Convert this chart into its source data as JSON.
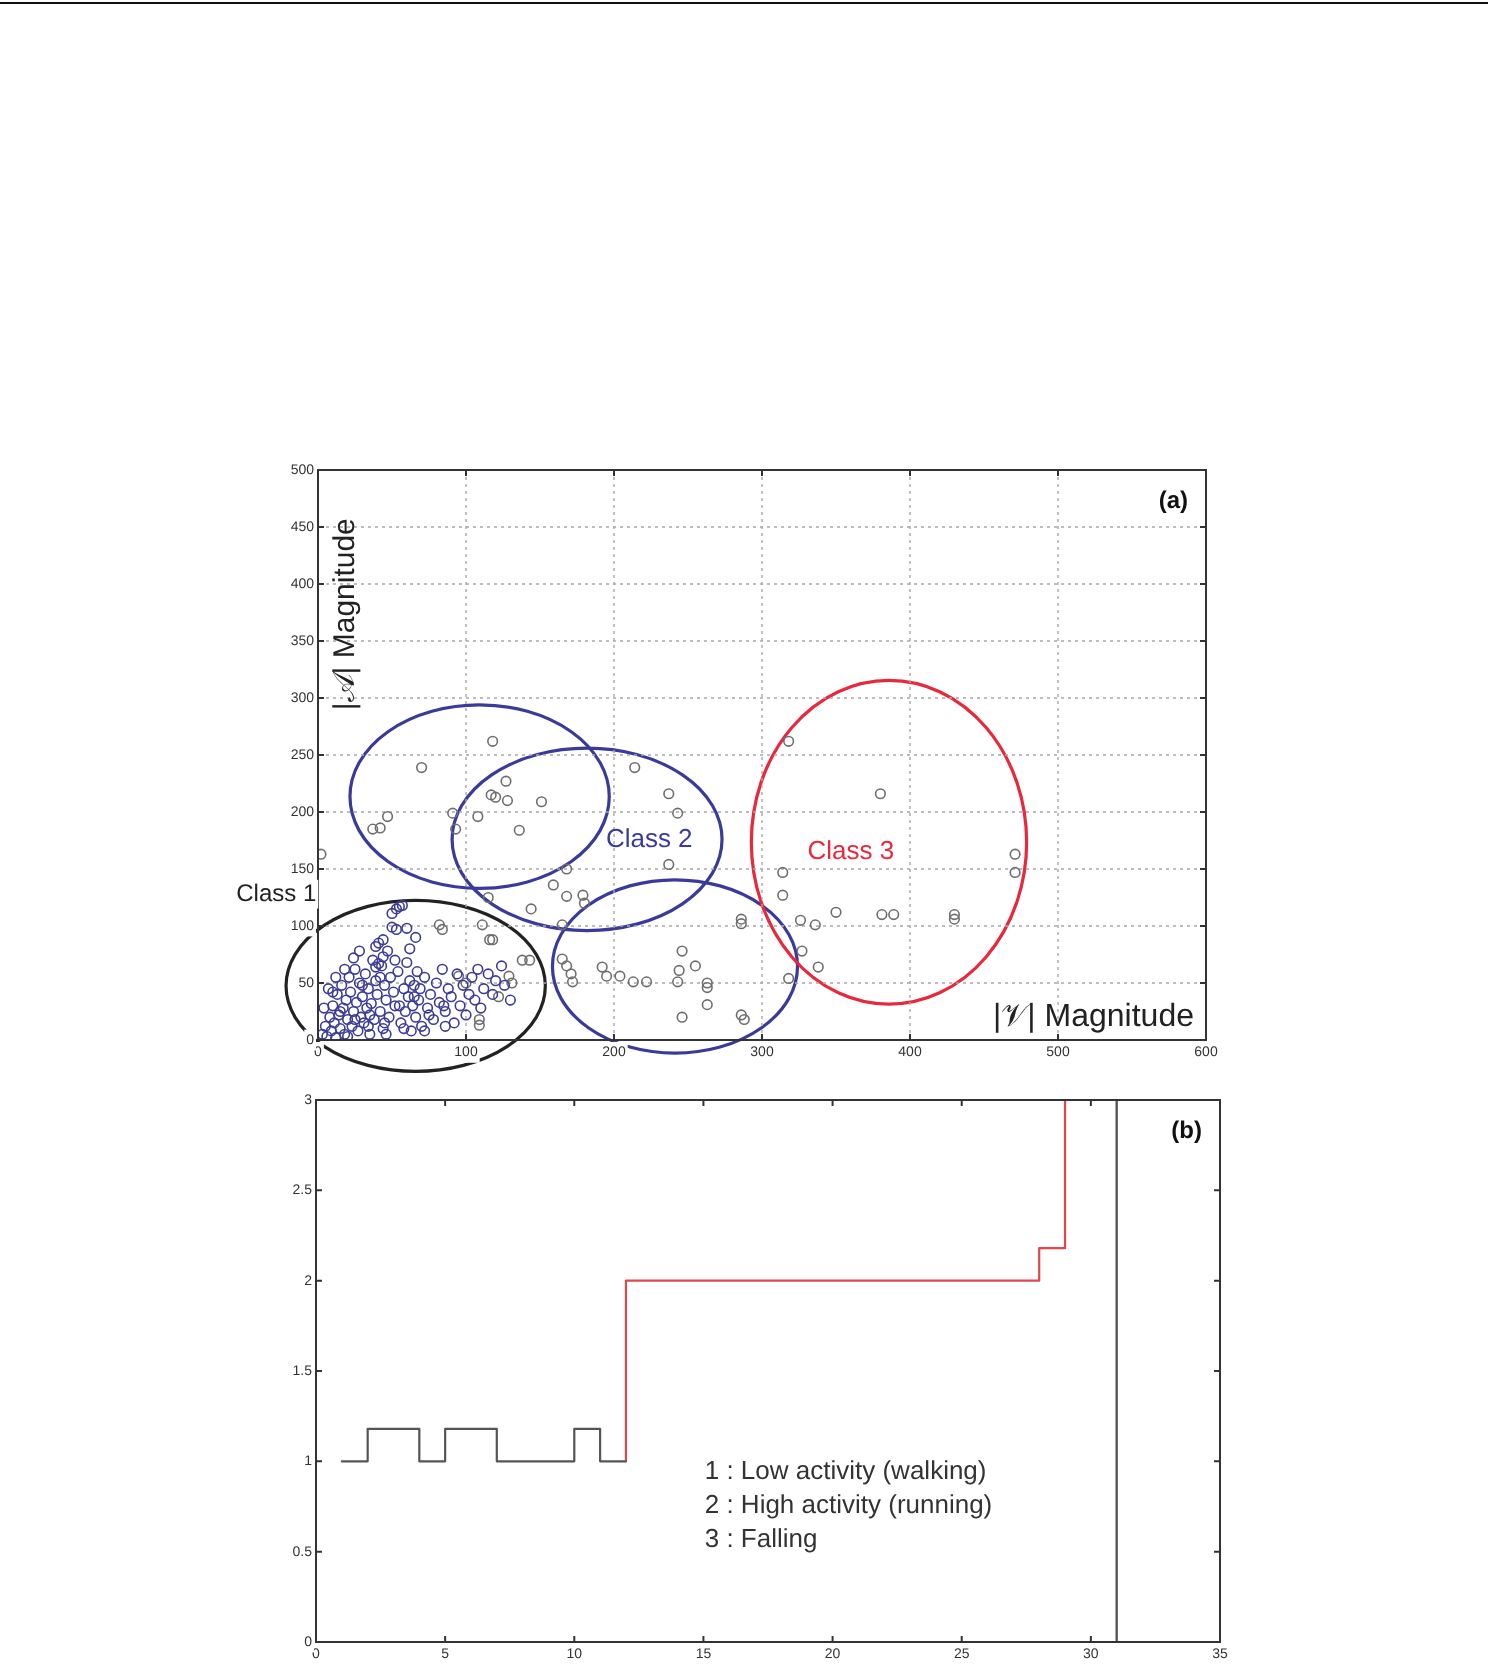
{
  "chart_data": [
    {
      "type": "scatter",
      "title": "(a)",
      "xlabel": "|𝒱| Magnitude",
      "ylabel": "|𝒜| Magnitude",
      "xlim": [
        0,
        600
      ],
      "xticks": [
        0,
        100,
        200,
        300,
        400,
        500,
        600
      ],
      "ylim": [
        0,
        500
      ],
      "yticks": [
        0,
        50,
        100,
        150,
        200,
        250,
        300,
        350,
        400,
        450,
        500
      ],
      "grid": true,
      "marker": "circle",
      "annotations": [
        "Class 1",
        "Class 2",
        "Class 3"
      ],
      "series": [
        {
          "color": "#3c3c96",
          "x": [
            3,
            5,
            6,
            8,
            9,
            10,
            11,
            12,
            13,
            14,
            15,
            16,
            17,
            18,
            19,
            20,
            21,
            22,
            23,
            24,
            25,
            26,
            27,
            28,
            29,
            30,
            31,
            32,
            33,
            34,
            35,
            36,
            37,
            38,
            39,
            40,
            41,
            42,
            43,
            44,
            45,
            46,
            47,
            48,
            49,
            50,
            51,
            52,
            53,
            54,
            55,
            56,
            57,
            58,
            59,
            60,
            61,
            62,
            63,
            64,
            65,
            66,
            67,
            68,
            69,
            70,
            72,
            74,
            76,
            78,
            80,
            82,
            84,
            86,
            88,
            90,
            92,
            94,
            96,
            98,
            100,
            102,
            104,
            106,
            108,
            110,
            112,
            115,
            118,
            120,
            124,
            126,
            130,
            44,
            39,
            53,
            50,
            41,
            44,
            39,
            7,
            12,
            18,
            24,
            28,
            20,
            34,
            46,
            58,
            72,
            86,
            15,
            25,
            35,
            45,
            55,
            65,
            75,
            85,
            4,
            10,
            30,
            42,
            52,
            62,
            66,
            60
          ],
          "values": [
            5,
            12,
            3,
            20,
            8,
            30,
            15,
            2,
            40,
            22,
            10,
            48,
            28,
            5,
            35,
            18,
            55,
            42,
            12,
            25,
            62,
            33,
            8,
            50,
            20,
            38,
            15,
            58,
            28,
            45,
            5,
            32,
            70,
            18,
            52,
            40,
            85,
            25,
            65,
            10,
            48,
            35,
            78,
            20,
            55,
            111,
            42,
            30,
            115,
            60,
            117,
            15,
            118,
            45,
            25,
            68,
            38,
            52,
            8,
            30,
            48,
            20,
            60,
            35,
            45,
            12,
            55,
            28,
            40,
            18,
            50,
            33,
            62,
            25,
            45,
            38,
            15,
            58,
            30,
            48,
            22,
            40,
            55,
            35,
            62,
            28,
            45,
            58,
            40,
            52,
            65,
            48,
            35,
            88,
            82,
            97,
            99,
            67,
            73,
            64,
            45,
            55,
            62,
            72,
            78,
            3,
            12,
            5,
            10,
            8,
            12,
            25,
            18,
            22,
            15,
            30,
            38,
            22,
            30,
            28,
            42,
            48,
            55,
            70,
            80,
            90,
            98
          ]
        },
        {
          "color": "#6e6e6e",
          "x": [
            118,
            70,
            47,
            42,
            37,
            91,
            93,
            108,
            117,
            127,
            128,
            120,
            136,
            151,
            214,
            237,
            243,
            237,
            168,
            159,
            168,
            179,
            180,
            144,
            165,
            115,
            165,
            168,
            171,
            172,
            192,
            195,
            204,
            213,
            222,
            246,
            255,
            244,
            243,
            263,
            263,
            246,
            263,
            286,
            286,
            288,
            286,
            314,
            314,
            318,
            327,
            326,
            336,
            338,
            350,
            380,
            381,
            389,
            430,
            430,
            471,
            471,
            318,
            2,
            82,
            84,
            111,
            116,
            118,
            143,
            138,
            129,
            131,
            109,
            109,
            122,
            95,
            100
          ],
          "values": [
            262,
            239,
            196,
            186,
            185,
            199,
            185,
            196,
            215,
            227,
            210,
            213,
            184,
            209,
            239,
            216,
            199,
            154,
            150,
            136,
            126,
            127,
            120,
            115,
            101,
            125,
            71,
            65,
            58,
            51,
            64,
            56,
            56,
            51,
            51,
            78,
            65,
            61,
            51,
            50,
            46,
            20,
            31,
            106,
            102,
            18,
            22,
            147,
            127,
            54,
            78,
            105,
            101,
            64,
            112,
            216,
            110,
            110,
            110,
            106,
            163,
            147,
            262,
            163,
            101,
            97,
            101,
            88,
            88,
            70,
            70,
            56,
            50,
            18,
            13,
            38,
            56,
            50
          ]
        }
      ]
    },
    {
      "type": "step",
      "title": "(b)",
      "xlim": [
        0,
        35
      ],
      "xticks": [
        0,
        5,
        10,
        15,
        20,
        25,
        30,
        35
      ],
      "ylim": [
        0,
        3
      ],
      "yticks": [
        0,
        0.5,
        1,
        1.5,
        2,
        2.5,
        3
      ],
      "annotations": [
        "1 : Low activity (walking)",
        "2 : High activity (running)",
        "3 : Falling"
      ],
      "ref_lines": [
        {
          "axis": "x",
          "value": 31,
          "color": "#555555"
        }
      ],
      "series": [
        {
          "color": "#555555",
          "x": [
            1,
            2,
            4,
            5,
            7,
            10,
            11,
            12
          ],
          "values": [
            1,
            1.18,
            1,
            1.18,
            1,
            1.18,
            1,
            1
          ]
        },
        {
          "color": "#e0474c",
          "x": [
            12,
            12,
            28,
            29
          ],
          "values": [
            1,
            2,
            2.18,
            3
          ]
        }
      ]
    }
  ]
}
